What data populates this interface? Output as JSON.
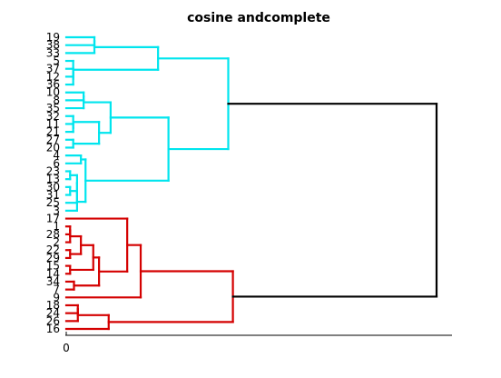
{
  "chart_data": {
    "type": "dendrogram",
    "title": "cosine andcomplete",
    "xlabel": "",
    "ylabel": "",
    "xlim": [
      0,
      1.0
    ],
    "x_ticks": [
      "0"
    ],
    "leaf_labels": [
      "19",
      "38",
      "33",
      "5",
      "37",
      "12",
      "36",
      "10",
      "8",
      "35",
      "32",
      "11",
      "21",
      "27",
      "20",
      "4",
      "6",
      "23",
      "13",
      "30",
      "31",
      "25",
      "3",
      "17",
      "1",
      "28",
      "2",
      "22",
      "29",
      "15",
      "14",
      "34",
      "7",
      "9",
      "18",
      "24",
      "26",
      "16"
    ],
    "cluster_colors": [
      "#00e5ee",
      "#d40000",
      "#000000"
    ],
    "merges": [
      {
        "a": 0,
        "b": 1,
        "height": 0.073,
        "color": "#00e5ee"
      },
      {
        "a": 38,
        "b": 2,
        "height": 0.073,
        "color": "#00e5ee"
      },
      {
        "a": 4,
        "b": 5,
        "height": 0.018,
        "color": "#00e5ee"
      },
      {
        "a": 40,
        "b": 6,
        "height": 0.018,
        "color": "#00e5ee"
      },
      {
        "a": 3,
        "b": 41,
        "height": 0.018,
        "color": "#00e5ee"
      },
      {
        "a": 39,
        "b": 42,
        "height": 0.238,
        "color": "#00e5ee"
      },
      {
        "a": 7,
        "b": 8,
        "height": 0.045,
        "color": "#00e5ee"
      },
      {
        "a": 44,
        "b": 9,
        "height": 0.045,
        "color": "#00e5ee"
      },
      {
        "a": 11,
        "b": 12,
        "height": 0.018,
        "color": "#00e5ee"
      },
      {
        "a": 10,
        "b": 46,
        "height": 0.018,
        "color": "#00e5ee"
      },
      {
        "a": 13,
        "b": 14,
        "height": 0.018,
        "color": "#00e5ee"
      },
      {
        "a": 47,
        "b": 48,
        "height": 0.085,
        "color": "#00e5ee"
      },
      {
        "a": 45,
        "b": 49,
        "height": 0.115,
        "color": "#00e5ee"
      },
      {
        "a": 15,
        "b": 16,
        "height": 0.038,
        "color": "#00e5ee"
      },
      {
        "a": 17,
        "b": 18,
        "height": 0.01,
        "color": "#00e5ee"
      },
      {
        "a": 19,
        "b": 20,
        "height": 0.01,
        "color": "#00e5ee"
      },
      {
        "a": 52,
        "b": 53,
        "height": 0.028,
        "color": "#00e5ee"
      },
      {
        "a": 54,
        "b": 21,
        "height": 0.028,
        "color": "#00e5ee"
      },
      {
        "a": 55,
        "b": 22,
        "height": 0.028,
        "color": "#00e5ee"
      },
      {
        "a": 51,
        "b": 56,
        "height": 0.05,
        "color": "#00e5ee"
      },
      {
        "a": 50,
        "b": 57,
        "height": 0.265,
        "color": "#00e5ee"
      },
      {
        "a": 43,
        "b": 58,
        "height": 0.42,
        "color": "#00e5ee"
      },
      {
        "a": 24,
        "b": 25,
        "height": 0.01,
        "color": "#d40000"
      },
      {
        "a": 60,
        "b": 26,
        "height": 0.01,
        "color": "#d40000"
      },
      {
        "a": 27,
        "b": 28,
        "height": 0.01,
        "color": "#d40000"
      },
      {
        "a": 61,
        "b": 62,
        "height": 0.038,
        "color": "#d40000"
      },
      {
        "a": 29,
        "b": 30,
        "height": 0.01,
        "color": "#d40000"
      },
      {
        "a": 63,
        "b": 64,
        "height": 0.07,
        "color": "#d40000"
      },
      {
        "a": 31,
        "b": 32,
        "height": 0.02,
        "color": "#d40000"
      },
      {
        "a": 65,
        "b": 66,
        "height": 0.085,
        "color": "#d40000"
      },
      {
        "a": 23,
        "b": 67,
        "height": 0.158,
        "color": "#d40000"
      },
      {
        "a": 68,
        "b": 33,
        "height": 0.193,
        "color": "#d40000"
      },
      {
        "a": 34,
        "b": 35,
        "height": 0.03,
        "color": "#d40000"
      },
      {
        "a": 70,
        "b": 36,
        "height": 0.03,
        "color": "#d40000"
      },
      {
        "a": 71,
        "b": 37,
        "height": 0.11,
        "color": "#d40000"
      },
      {
        "a": 69,
        "b": 72,
        "height": 0.432,
        "color": "#d40000"
      },
      {
        "a": 59,
        "b": 73,
        "height": 0.96,
        "color": "#000000"
      }
    ]
  }
}
